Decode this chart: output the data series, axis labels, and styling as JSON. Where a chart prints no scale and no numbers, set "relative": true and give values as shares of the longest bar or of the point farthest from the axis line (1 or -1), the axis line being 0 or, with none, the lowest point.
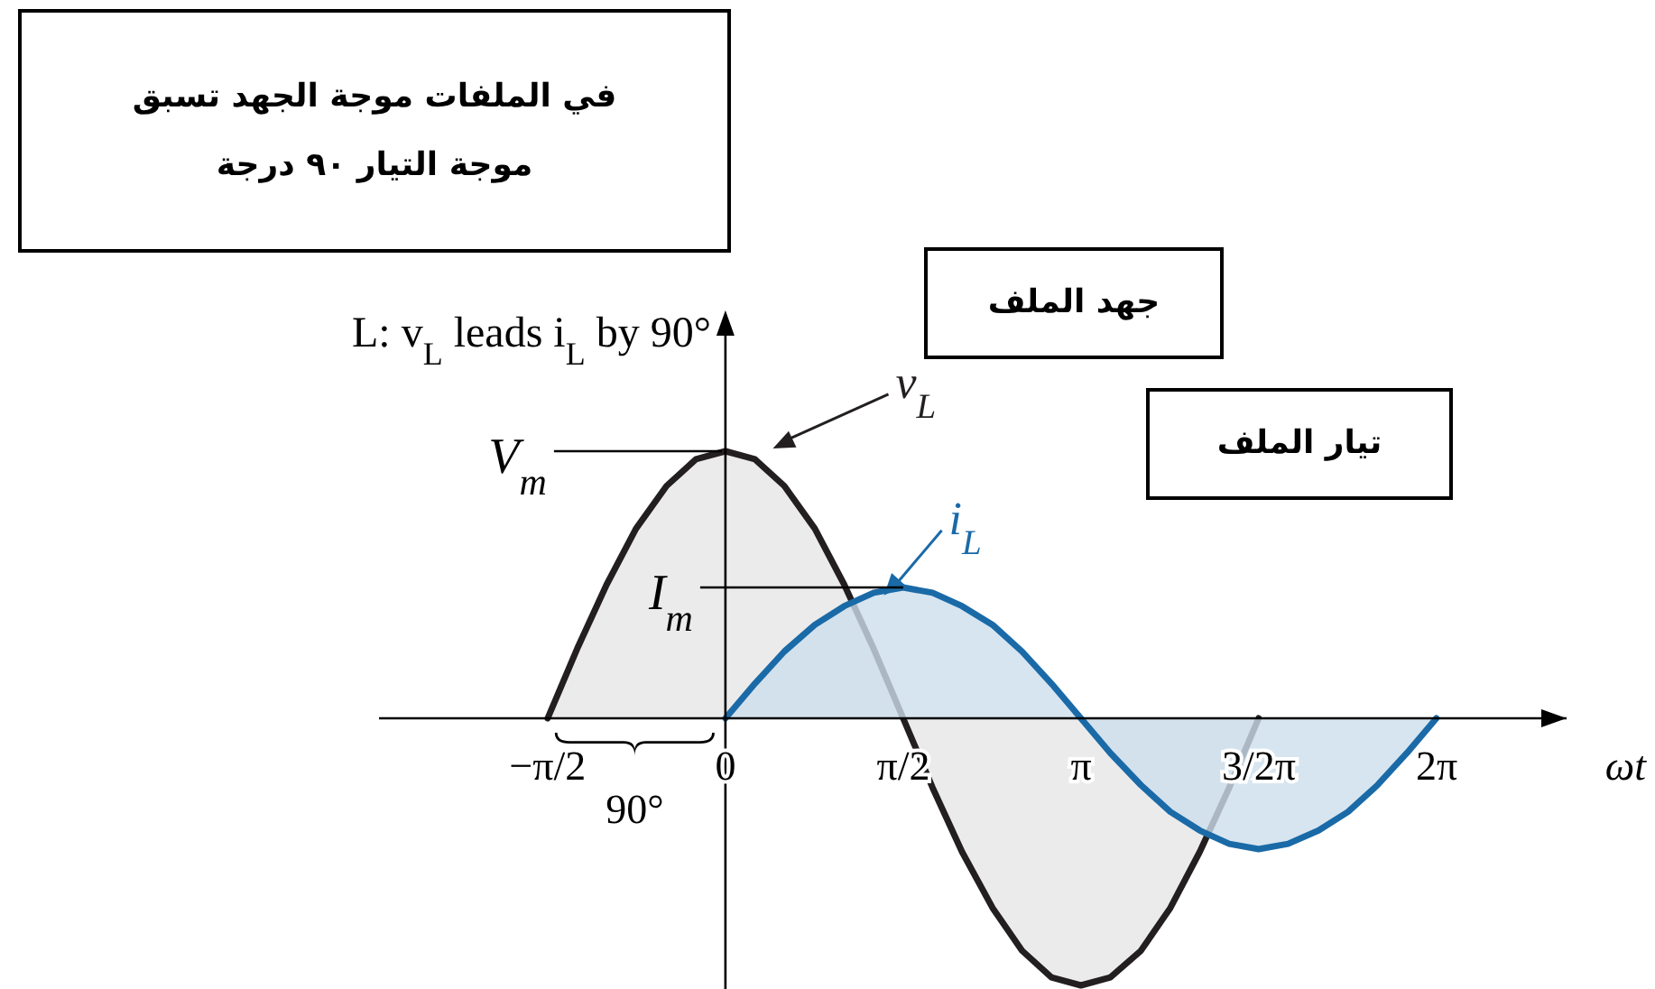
{
  "chart_data": {
    "type": "area",
    "relative": true,
    "title": "L: v$_{L}$ leads i$_{L}$ by 90°",
    "xlabel": "ωt",
    "xlim": [
      -3.06,
      7.43
    ],
    "xticks": [
      {
        "value": -1.5708,
        "label": "−π/2"
      },
      {
        "value": 0,
        "label": "0"
      },
      {
        "value": 1.5708,
        "label": "π/2"
      },
      {
        "value": 3.1416,
        "label": "π"
      },
      {
        "value": 4.7124,
        "label": "3/2π"
      },
      {
        "value": 6.2832,
        "label": "2π"
      }
    ],
    "tick_labels": "x",
    "series": [
      {
        "name": "v$_{L}$",
        "color": "#231f20",
        "x": [
          -1.57,
          -1.31,
          -1.05,
          -0.79,
          -0.52,
          -0.26,
          0,
          0.26,
          0.52,
          0.79,
          1.05,
          1.31,
          1.57,
          1.83,
          2.09,
          2.36,
          2.62,
          2.88,
          3.14,
          3.4,
          3.67,
          3.93,
          4.19,
          4.45,
          4.71
        ],
        "values": [
          0,
          0.26,
          0.5,
          0.71,
          0.87,
          0.97,
          1,
          0.97,
          0.87,
          0.71,
          0.5,
          0.26,
          0,
          -0.26,
          -0.5,
          -0.71,
          -0.87,
          -0.97,
          -1,
          -0.97,
          -0.87,
          -0.71,
          -0.5,
          -0.26,
          0
        ]
      },
      {
        "name": "i$_{L}$",
        "color": "#1a6aa8",
        "x": [
          0,
          0.26,
          0.52,
          0.79,
          1.05,
          1.31,
          1.57,
          1.83,
          2.09,
          2.36,
          2.62,
          2.88,
          3.14,
          3.4,
          3.67,
          3.93,
          4.19,
          4.45,
          4.71,
          4.97,
          5.24,
          5.5,
          5.76,
          6.02,
          6.28
        ],
        "values": [
          0,
          0.13,
          0.25,
          0.35,
          0.42,
          0.47,
          0.49,
          0.47,
          0.42,
          0.35,
          0.25,
          0.13,
          0,
          -0.13,
          -0.25,
          -0.35,
          -0.42,
          -0.47,
          -0.49,
          -0.47,
          -0.42,
          -0.35,
          -0.25,
          -0.13,
          0
        ]
      }
    ],
    "annotations": [
      "في الملفات موجة الجهد تسبق موجة التيار ٩٠ درجة",
      "جهد الملف",
      "تيار الملف",
      "90°",
      {
        "text": "V$_{m}$",
        "x": 0,
        "y": 1
      },
      {
        "text": "I$_{m}$",
        "x": 1.57,
        "y": 0.49
      }
    ]
  }
}
